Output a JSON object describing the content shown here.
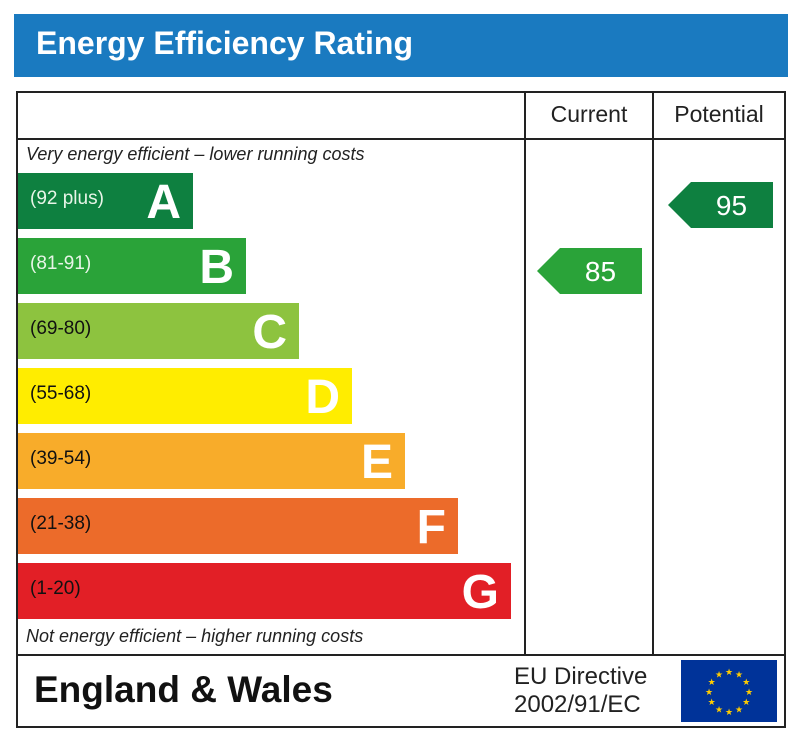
{
  "title": "Energy Efficiency Rating",
  "columns": {
    "current": "Current",
    "potential": "Potential"
  },
  "top_note": "Very energy efficient – lower running costs",
  "bottom_note": "Not energy efficient – higher running costs",
  "footer": {
    "country": "England & Wales",
    "directive_line1": "EU Directive",
    "directive_line2": "2002/91/EC",
    "flag_icon": "eu-flag-icon"
  },
  "chart_data": {
    "type": "bar",
    "title": "Energy Efficiency Rating",
    "bands": [
      {
        "letter": "A",
        "range": "(92 plus)",
        "color": "#0e8040",
        "text_color": "#e8f5e8"
      },
      {
        "letter": "B",
        "range": "(81-91)",
        "color": "#2aa339",
        "text_color": "#e8f5e8"
      },
      {
        "letter": "C",
        "range": "(69-80)",
        "color": "#8dc33f",
        "text_color": "#111111"
      },
      {
        "letter": "D",
        "range": "(55-68)",
        "color": "#ffed00",
        "text_color": "#111111"
      },
      {
        "letter": "E",
        "range": "(39-54)",
        "color": "#f8ac2a",
        "text_color": "#111111"
      },
      {
        "letter": "F",
        "range": "(21-38)",
        "color": "#ec6b2a",
        "text_color": "#111111"
      },
      {
        "letter": "G",
        "range": "(1-20)",
        "color": "#e21f26",
        "text_color": "#111111"
      }
    ],
    "current": {
      "value": "85",
      "band": "B",
      "color": "#2aa339"
    },
    "potential": {
      "value": "95",
      "band": "A",
      "color": "#0e8040"
    }
  }
}
